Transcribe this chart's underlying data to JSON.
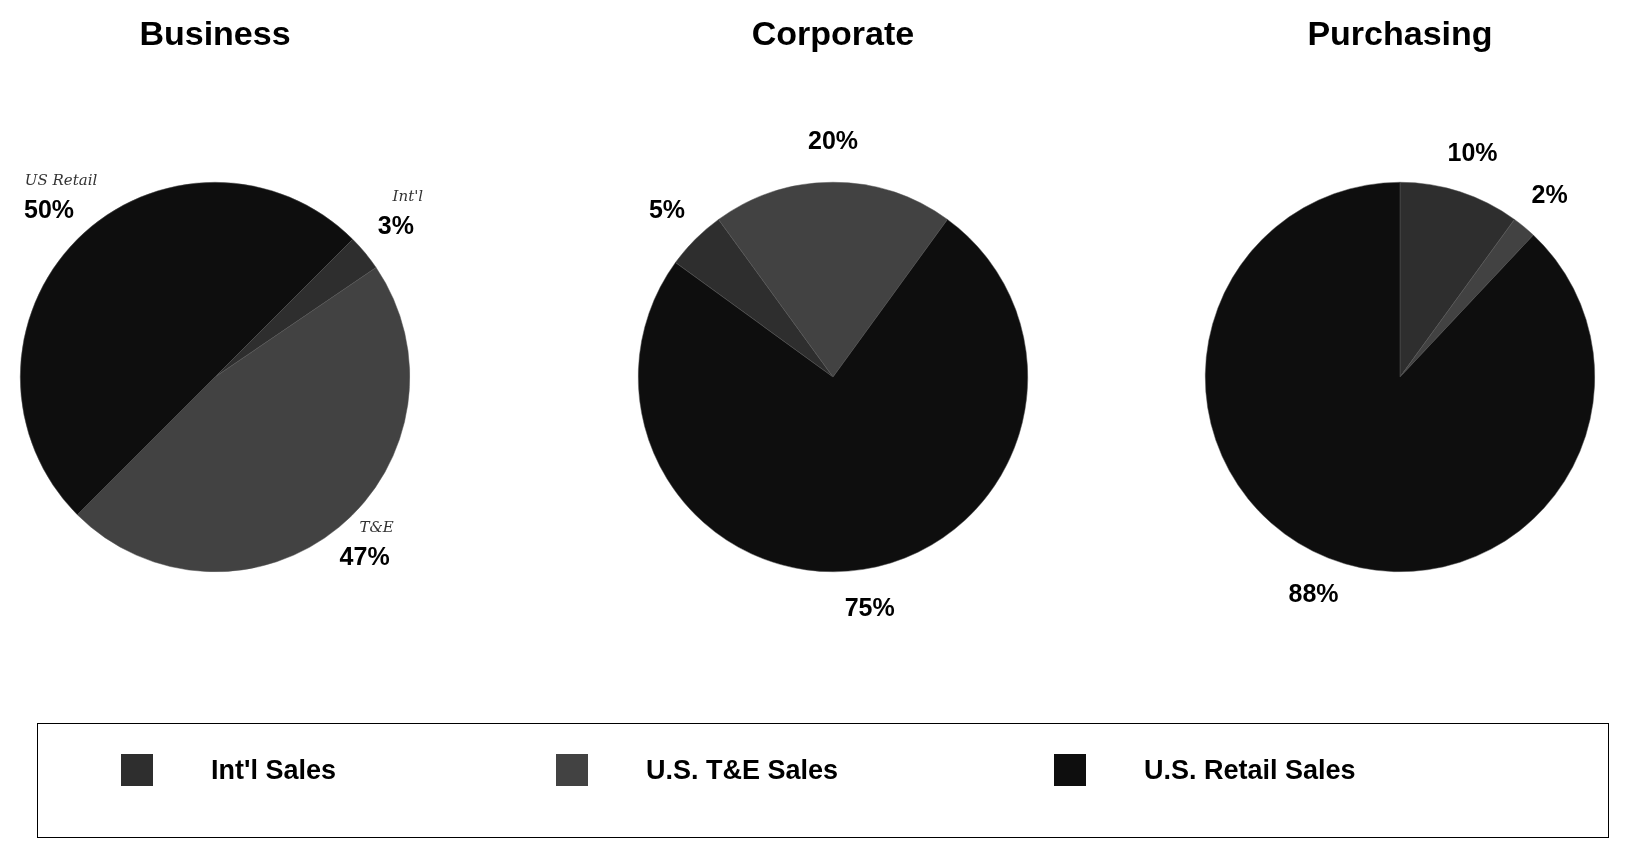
{
  "chart_data": [
    {
      "type": "pie",
      "title": "Business",
      "categories": [
        "Int'l Sales",
        "U.S. T&E Sales",
        "U.S. Retail Sales"
      ],
      "values": [
        3,
        47,
        50
      ],
      "colors": [
        "#2e2e2e",
        "#424242",
        "#0e0e0e"
      ],
      "value_labels": [
        "3%",
        "47%",
        "50%"
      ],
      "annotations": [
        "Int'l",
        "T&E",
        "US Retail"
      ],
      "legend": "bottom"
    },
    {
      "type": "pie",
      "title": "Corporate",
      "values": [
        5,
        20,
        75
      ],
      "colors": [
        "#2e2e2e",
        "#424242",
        "#0e0e0e"
      ],
      "value_labels": [
        "5%",
        "20%",
        "75%"
      ]
    },
    {
      "type": "pie",
      "title": "Purchasing",
      "values": [
        10,
        2,
        88
      ],
      "colors": [
        "#2e2e2e",
        "#424242",
        "#0e0e0e"
      ],
      "value_labels": [
        "10%",
        "2%",
        "88%"
      ]
    }
  ]
}
